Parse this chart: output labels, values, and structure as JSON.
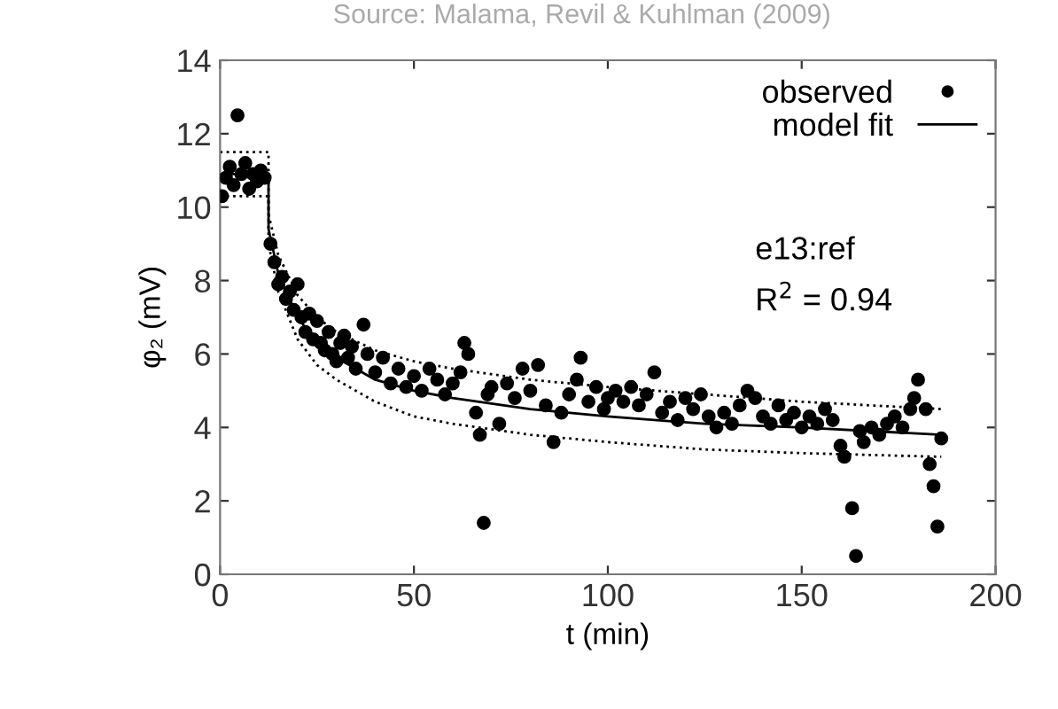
{
  "chart_data": {
    "type": "scatter",
    "xlabel": "t (min)",
    "ylabel": "φ₂ (mV)",
    "xlim": [
      0,
      200
    ],
    "ylim": [
      0,
      14
    ],
    "xticks": [
      0,
      50,
      100,
      150,
      200
    ],
    "yticks": [
      0,
      2,
      4,
      6,
      8,
      10,
      12,
      14
    ],
    "grid": false,
    "legend": "top right",
    "annotations": [
      "Source: Malama, Revil & Kuhlman (2009)",
      "e13:ref",
      "R$^{2}$ = 0.94"
    ],
    "series": [
      {
        "name": "observed",
        "marker": "circle",
        "color": "#000000",
        "x": [
          0.5,
          1.5,
          2.5,
          3.5,
          4.5,
          5.5,
          6.5,
          7.5,
          8.5,
          9.5,
          10.5,
          11.5,
          13,
          14,
          15,
          16,
          17,
          18,
          19,
          20,
          21,
          22,
          23,
          24,
          25,
          26,
          27,
          28,
          29,
          30,
          31,
          32,
          33,
          34,
          35,
          37,
          38,
          40,
          42,
          44,
          46,
          48,
          50,
          52,
          54,
          56,
          58,
          60,
          62,
          63,
          64,
          66,
          67,
          68,
          69,
          70,
          72,
          74,
          76,
          78,
          80,
          82,
          84,
          86,
          88,
          90,
          92,
          93,
          95,
          97,
          99,
          100,
          102,
          104,
          106,
          108,
          110,
          112,
          114,
          116,
          118,
          120,
          122,
          124,
          126,
          128,
          130,
          132,
          134,
          136,
          138,
          140,
          142,
          144,
          146,
          148,
          150,
          152,
          154,
          156,
          158,
          160,
          161,
          163,
          164,
          165,
          166,
          168,
          170,
          172,
          174,
          176,
          178,
          179,
          180,
          182,
          183,
          184,
          185,
          186
        ],
        "values": [
          10.3,
          10.8,
          11.1,
          10.6,
          12.5,
          10.9,
          11.2,
          10.5,
          10.9,
          10.7,
          11.0,
          10.8,
          9.0,
          8.5,
          7.9,
          8.1,
          7.5,
          7.7,
          7.2,
          7.9,
          7.0,
          6.6,
          7.1,
          6.4,
          6.9,
          6.3,
          6.1,
          6.6,
          6.0,
          5.8,
          6.3,
          6.5,
          5.9,
          6.2,
          5.6,
          6.8,
          6.0,
          5.5,
          5.9,
          5.2,
          5.6,
          5.1,
          5.4,
          5.0,
          5.6,
          5.3,
          4.9,
          5.2,
          5.5,
          6.3,
          6.0,
          4.4,
          3.8,
          1.4,
          4.9,
          5.1,
          4.1,
          5.2,
          4.8,
          5.6,
          5.0,
          5.7,
          4.6,
          3.6,
          4.4,
          4.9,
          5.3,
          5.9,
          4.7,
          5.1,
          4.5,
          4.8,
          5.0,
          4.7,
          5.1,
          4.6,
          4.9,
          5.5,
          4.4,
          4.7,
          4.2,
          4.8,
          4.5,
          4.9,
          4.3,
          4.0,
          4.4,
          4.1,
          4.6,
          5.0,
          4.8,
          4.3,
          4.1,
          4.6,
          4.2,
          4.4,
          4.0,
          4.3,
          4.1,
          4.5,
          4.2,
          3.5,
          3.2,
          1.8,
          0.5,
          3.9,
          3.6,
          4.0,
          3.8,
          4.1,
          4.3,
          4.0,
          4.5,
          4.8,
          5.3,
          4.5,
          3.0,
          2.4,
          1.3,
          3.7
        ]
      },
      {
        "name": "model fit",
        "type": "line",
        "line_style": "solid",
        "color": "#000000",
        "x": [
          0,
          12.5,
          12.5,
          15,
          20,
          25,
          30,
          40,
          50,
          60,
          80,
          100,
          125,
          150,
          186
        ],
        "values": [
          10.9,
          10.9,
          9.4,
          8.2,
          7.0,
          6.3,
          5.9,
          5.3,
          5.0,
          4.8,
          4.5,
          4.3,
          4.1,
          4.0,
          3.8
        ]
      },
      {
        "type": "line",
        "line_style": "dotted",
        "color": "#000000",
        "x": [
          0,
          12.5,
          12.5,
          15,
          20,
          25,
          30,
          40,
          50,
          60,
          80,
          100,
          125,
          150,
          186
        ],
        "values": [
          11.5,
          11.5,
          9.8,
          8.7,
          7.6,
          7.0,
          6.6,
          6.1,
          5.8,
          5.6,
          5.3,
          5.1,
          4.9,
          4.7,
          4.5
        ]
      },
      {
        "type": "line",
        "line_style": "dotted",
        "color": "#000000",
        "x": [
          0,
          12.5,
          12.5,
          15,
          20,
          25,
          30,
          40,
          50,
          60,
          80,
          100,
          125,
          150,
          186
        ],
        "values": [
          10.3,
          10.3,
          9.0,
          7.7,
          6.4,
          5.7,
          5.3,
          4.7,
          4.3,
          4.1,
          3.8,
          3.6,
          3.4,
          3.3,
          3.2
        ]
      }
    ]
  }
}
